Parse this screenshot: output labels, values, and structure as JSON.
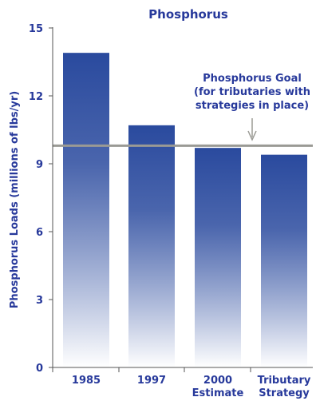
{
  "chart_data": {
    "type": "bar",
    "title": "Phosphorus",
    "ylabel": "Phosphorus Loads (millions of lbs/yr)",
    "xlabel": "",
    "ylim": [
      0,
      15
    ],
    "yticks": [
      0,
      3,
      6,
      9,
      12,
      15
    ],
    "categories": [
      [
        "1985"
      ],
      [
        "1997"
      ],
      [
        "2000",
        "Estimate"
      ],
      [
        "Tributary",
        "Strategy"
      ]
    ],
    "values": [
      13.9,
      10.7,
      9.7,
      9.4
    ],
    "goal": {
      "value": 9.8,
      "label_lines": [
        "Phosphorus Goal",
        "(for tributaries with",
        "strategies in place)"
      ]
    },
    "grid": false,
    "legend": "none",
    "colors": {
      "bar_top": "#2a4a9e",
      "bar_bottom": "#ffffff",
      "text": "#27399b",
      "goal_line": "#9a9a94",
      "axis": "#555555"
    }
  }
}
